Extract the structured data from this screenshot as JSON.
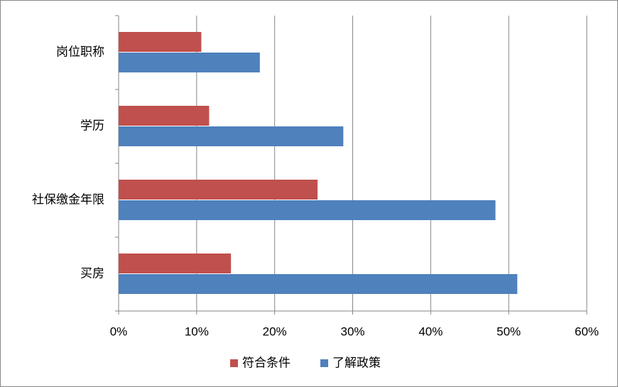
{
  "chart_data": {
    "type": "bar",
    "orientation": "horizontal",
    "categories": [
      "岗位职称",
      "学历",
      "社保缴金年限",
      "买房"
    ],
    "series": [
      {
        "name": "符合条件",
        "color": "#c0504d",
        "values": [
          10.6,
          11.6,
          25.5,
          14.4
        ]
      },
      {
        "name": "了解政策",
        "color": "#4f81bd",
        "values": [
          18.1,
          28.8,
          48.3,
          51.1
        ]
      }
    ],
    "xlim": [
      0,
      60
    ],
    "xticks": [
      {
        "value": 0,
        "label": "0%"
      },
      {
        "value": 10,
        "label": "10%"
      },
      {
        "value": 20,
        "label": "20%"
      },
      {
        "value": 30,
        "label": "30%"
      },
      {
        "value": 40,
        "label": "40%"
      },
      {
        "value": 50,
        "label": "50%"
      },
      {
        "value": 60,
        "label": "60%"
      }
    ],
    "grid": true,
    "legend": "bottom"
  }
}
